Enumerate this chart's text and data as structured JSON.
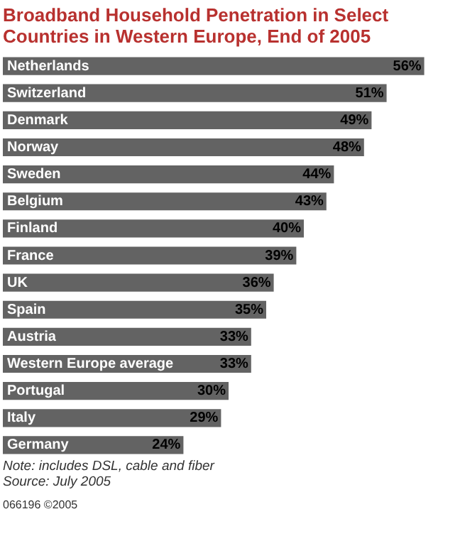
{
  "chart_data": {
    "type": "bar",
    "orientation": "horizontal",
    "title": "Broadband Household Penetration in Select Countries in Western Europe, End of 2005",
    "categories": [
      "Netherlands",
      "Switzerland",
      "Denmark",
      "Norway",
      "Sweden",
      "Belgium",
      "Finland",
      "France",
      "UK",
      "Spain",
      "Austria",
      "Western Europe average",
      "Portugal",
      "Italy",
      "Germany"
    ],
    "values": [
      56,
      51,
      49,
      48,
      44,
      43,
      40,
      39,
      36,
      35,
      33,
      33,
      30,
      29,
      24
    ],
    "value_labels": [
      "56%",
      "51%",
      "49%",
      "48%",
      "44%",
      "43%",
      "40%",
      "39%",
      "36%",
      "35%",
      "33%",
      "33%",
      "30%",
      "29%",
      "24%"
    ],
    "color": "#636363",
    "tick_labels": false,
    "annotations": [
      "Note: includes DSL, cable and fiber",
      "Source: July 2005",
      "066196 ©2005"
    ]
  }
}
